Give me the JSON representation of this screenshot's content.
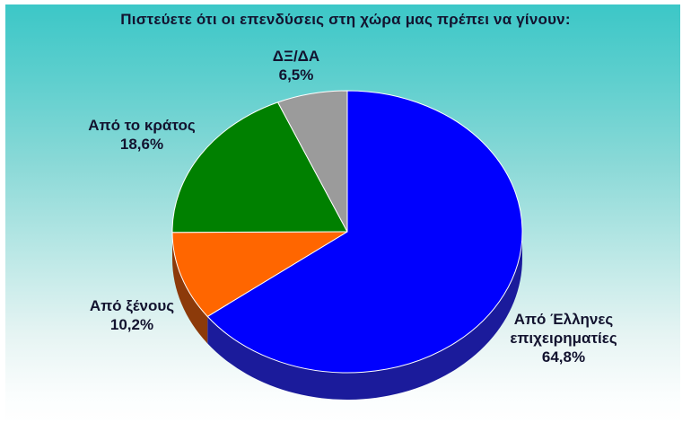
{
  "chart_data": {
    "type": "pie",
    "style": "3d",
    "title": "Πιστεύετε ότι οι επενδύσεις στη χώρα μας πρέπει να γίνουν:",
    "direction": "clockwise",
    "start_angle_deg": 0,
    "legend_position": "none",
    "background": {
      "gradient_top": "#3cc7c7",
      "gradient_bottom": "#ffffff"
    },
    "slices": [
      {
        "label": "Από Έλληνες επιχειρηματίες",
        "pct_label": "64,8%",
        "value": 64.8,
        "color": "#0000fe",
        "side_color": "#1b1b9b"
      },
      {
        "label": "Από ξένους",
        "pct_label": "10,2%",
        "value": 10.2,
        "color": "#ff6600",
        "side_color": "#8c3a0a"
      },
      {
        "label": "Από το κράτος",
        "pct_label": "18,6%",
        "value": 18.6,
        "color": "#008000"
      },
      {
        "label": "ΔΞ/ΔΑ",
        "pct_label": "6,5%",
        "value": 6.5,
        "color": "#9b9b9b"
      }
    ]
  }
}
